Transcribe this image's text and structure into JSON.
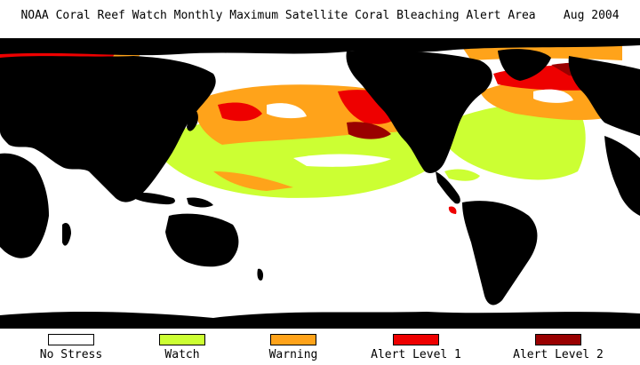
{
  "title": "NOAA Coral Reef Watch Monthly Maximum Satellite Coral Bleaching Alert Area    Aug 2004",
  "legend": [
    {
      "label": "No Stress",
      "color": "#ffffff"
    },
    {
      "label": "Watch",
      "color": "#ccff33"
    },
    {
      "label": "Warning",
      "color": "#ffa31a"
    },
    {
      "label": "Alert Level 1",
      "color": "#ee0000"
    },
    {
      "label": "Alert Level 2",
      "color": "#990000"
    }
  ],
  "colors": {
    "land": "#000000",
    "no_stress": "#ffffff",
    "watch": "#ccff33",
    "warning": "#ffa31a",
    "alert_level_1": "#ee0000",
    "alert_level_2": "#990000"
  }
}
